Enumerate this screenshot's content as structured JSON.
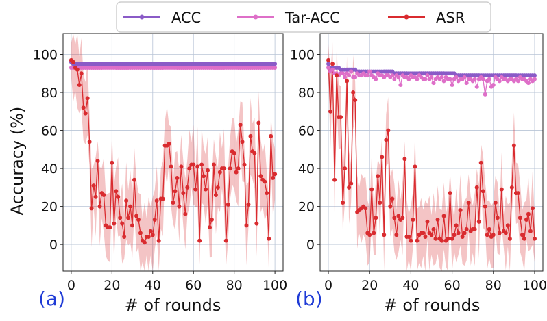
{
  "figure": {
    "legend": [
      {
        "label": "ACC",
        "color": "#8a5bc7"
      },
      {
        "label": "Tar-ACC",
        "color": "#de6fc8"
      },
      {
        "label": "ASR",
        "color": "#d92b2f"
      }
    ],
    "ylabel": "Accuracy (%)"
  },
  "chart_data": [
    {
      "type": "line",
      "panel_label": "(a)",
      "xlabel": "# of rounds",
      "ylabel": "Accuracy (%)",
      "xlim": [
        -4,
        104
      ],
      "ylim": [
        -14,
        111
      ],
      "xticks": [
        0,
        20,
        40,
        60,
        80,
        100
      ],
      "yticks": [
        0,
        20,
        40,
        60,
        80,
        100
      ],
      "grid": true,
      "x": [
        0,
        1,
        2,
        3,
        4,
        5,
        6,
        7,
        8,
        9,
        10,
        11,
        12,
        13,
        14,
        15,
        16,
        17,
        18,
        19,
        20,
        21,
        22,
        23,
        24,
        25,
        26,
        27,
        28,
        29,
        30,
        31,
        32,
        33,
        34,
        35,
        36,
        37,
        38,
        39,
        40,
        41,
        42,
        43,
        44,
        45,
        46,
        47,
        48,
        49,
        50,
        51,
        52,
        53,
        54,
        55,
        56,
        57,
        58,
        59,
        60,
        61,
        62,
        63,
        64,
        65,
        66,
        67,
        68,
        69,
        70,
        71,
        72,
        73,
        74,
        75,
        76,
        77,
        78,
        79,
        80,
        81,
        82,
        83,
        84,
        85,
        86,
        87,
        88,
        89,
        90,
        91,
        92,
        93,
        94,
        95,
        96,
        97,
        98,
        99,
        100
      ],
      "series": [
        {
          "name": "ACC",
          "color": "#8a5bc7",
          "values": [
            96,
            95,
            95,
            95,
            95,
            95,
            95,
            95,
            95,
            95,
            95,
            95,
            95,
            95,
            95,
            95,
            95,
            95,
            95,
            95,
            95,
            95,
            95,
            95,
            95,
            95,
            95,
            95,
            95,
            95,
            95,
            95,
            95,
            95,
            95,
            95,
            95,
            95,
            95,
            95,
            95,
            95,
            95,
            95,
            95,
            95,
            95,
            95,
            95,
            95,
            95,
            95,
            95,
            95,
            95,
            95,
            95,
            95,
            95,
            95,
            95,
            95,
            95,
            95,
            95,
            95,
            95,
            95,
            95,
            95,
            95,
            95,
            95,
            95,
            95,
            95,
            95,
            95,
            95,
            95,
            95,
            95,
            95,
            95,
            95,
            95,
            95,
            95,
            95,
            95,
            95,
            95,
            95,
            95,
            95,
            95,
            95,
            95,
            95,
            95,
            95
          ]
        },
        {
          "name": "Tar-ACC",
          "color": "#de6fc8",
          "values": [
            93,
            93,
            93,
            93,
            93,
            93,
            93,
            93,
            93,
            93,
            93,
            93,
            93,
            93,
            93,
            93,
            93,
            93,
            93,
            93,
            93,
            93,
            93,
            93,
            93,
            93,
            93,
            93,
            93,
            93,
            93,
            93,
            93,
            93,
            93,
            93,
            93,
            93,
            93,
            93,
            93,
            93,
            93,
            93,
            93,
            93,
            93,
            93,
            93,
            93,
            93,
            93,
            93,
            93,
            93,
            93,
            93,
            93,
            93,
            93,
            93,
            93,
            93,
            93,
            93,
            93,
            93,
            93,
            93,
            93,
            93,
            93,
            93,
            93,
            93,
            93,
            93,
            93,
            93,
            93,
            93,
            93,
            93,
            93,
            93,
            93,
            93,
            93,
            93,
            93,
            93,
            93,
            93,
            93,
            93,
            93,
            93,
            93,
            93,
            93,
            93
          ]
        },
        {
          "name": "ASR",
          "color": "#d92b2f",
          "band_width": 15,
          "values": [
            97,
            96,
            93,
            92,
            84,
            90,
            72,
            69,
            77,
            54,
            19,
            31,
            25,
            44,
            20,
            27,
            26,
            10,
            9,
            9,
            43,
            11,
            28,
            25,
            14,
            11,
            4,
            23,
            14,
            20,
            10,
            34,
            15,
            13,
            6,
            2,
            1,
            4,
            4,
            7,
            5,
            13,
            23,
            2,
            24,
            24,
            52,
            52,
            53,
            41,
            22,
            28,
            35,
            20,
            41,
            27,
            16,
            30,
            40,
            42,
            42,
            29,
            41,
            2,
            42,
            36,
            29,
            39,
            9,
            13,
            42,
            26,
            30,
            38,
            40,
            40,
            2,
            21,
            40,
            49,
            48,
            38,
            40,
            63,
            54,
            42,
            10,
            21,
            57,
            49,
            48,
            11,
            64,
            36,
            34,
            33,
            27,
            3,
            57,
            35,
            37
          ]
        }
      ]
    },
    {
      "type": "line",
      "panel_label": "(b)",
      "xlabel": "# of rounds",
      "ylabel": "",
      "xlim": [
        -4,
        104
      ],
      "ylim": [
        -14,
        111
      ],
      "xticks": [
        0,
        20,
        40,
        60,
        80,
        100
      ],
      "yticks": [
        0,
        20,
        40,
        60,
        80,
        100
      ],
      "grid": true,
      "x": [
        0,
        1,
        2,
        3,
        4,
        5,
        6,
        7,
        8,
        9,
        10,
        11,
        12,
        13,
        14,
        15,
        16,
        17,
        18,
        19,
        20,
        21,
        22,
        23,
        24,
        25,
        26,
        27,
        28,
        29,
        30,
        31,
        32,
        33,
        34,
        35,
        36,
        37,
        38,
        39,
        40,
        41,
        42,
        43,
        44,
        45,
        46,
        47,
        48,
        49,
        50,
        51,
        52,
        53,
        54,
        55,
        56,
        57,
        58,
        59,
        60,
        61,
        62,
        63,
        64,
        65,
        66,
        67,
        68,
        69,
        70,
        71,
        72,
        73,
        74,
        75,
        76,
        77,
        78,
        79,
        80,
        81,
        82,
        83,
        84,
        85,
        86,
        87,
        88,
        89,
        90,
        91,
        92,
        93,
        94,
        95,
        96,
        97,
        98,
        99,
        100
      ],
      "series": [
        {
          "name": "ACC",
          "color": "#8a5bc7",
          "values": [
            95,
            93,
            93,
            93,
            93,
            93,
            92,
            92,
            92,
            92,
            92,
            92,
            92,
            92,
            91,
            91,
            91,
            91,
            91,
            91,
            91,
            91,
            91,
            91,
            91,
            91,
            91,
            91,
            91,
            91,
            91,
            91,
            90,
            90,
            90,
            90,
            90,
            90,
            90,
            90,
            90,
            90,
            90,
            90,
            90,
            90,
            90,
            90,
            90,
            90,
            90,
            90,
            90,
            90,
            90,
            90,
            90,
            90,
            90,
            90,
            90,
            90,
            89,
            89,
            89,
            89,
            89,
            89,
            89,
            89,
            89,
            89,
            89,
            89,
            89,
            89,
            89,
            89,
            89,
            89,
            89,
            89,
            89,
            89,
            89,
            89,
            89,
            89,
            89,
            89,
            89,
            89,
            89,
            89,
            89,
            89,
            89,
            89,
            89,
            89,
            89
          ]
        },
        {
          "name": "Tar-ACC",
          "color": "#de6fc8",
          "values": [
            93,
            91,
            92,
            90,
            90,
            89,
            90,
            90,
            88,
            90,
            89,
            91,
            88,
            88,
            90,
            89,
            89,
            90,
            89,
            89,
            91,
            89,
            88,
            87,
            90,
            89,
            89,
            88,
            89,
            89,
            88,
            89,
            87,
            89,
            88,
            84,
            89,
            88,
            88,
            87,
            89,
            88,
            88,
            87,
            89,
            88,
            87,
            87,
            89,
            87,
            88,
            85,
            87,
            88,
            87,
            88,
            86,
            88,
            87,
            87,
            84,
            87,
            88,
            86,
            87,
            87,
            88,
            85,
            87,
            87,
            86,
            87,
            83,
            87,
            88,
            87,
            79,
            86,
            87,
            83,
            84,
            88,
            87,
            86,
            88,
            87,
            87,
            86,
            87,
            87,
            86,
            87,
            86,
            88,
            87,
            87,
            86,
            85,
            87,
            86,
            87
          ]
        },
        {
          "name": "ASR",
          "color": "#d92b2f",
          "band_width": 14,
          "values": [
            97,
            70,
            95,
            34,
            89,
            67,
            67,
            22,
            40,
            86,
            30,
            32,
            80,
            76,
            17,
            18,
            19,
            20,
            19,
            6,
            5,
            29,
            6,
            14,
            36,
            22,
            46,
            5,
            55,
            60,
            20,
            24,
            14,
            5,
            15,
            13,
            14,
            45,
            4,
            4,
            2,
            13,
            41,
            2,
            5,
            6,
            6,
            4,
            12,
            6,
            5,
            8,
            3,
            13,
            3,
            2,
            15,
            2,
            3,
            27,
            3,
            5,
            10,
            6,
            18,
            4,
            6,
            8,
            22,
            7,
            8,
            8,
            30,
            12,
            43,
            28,
            20,
            5,
            8,
            4,
            5,
            22,
            14,
            6,
            29,
            7,
            6,
            10,
            3,
            30,
            52,
            27,
            27,
            14,
            5,
            3,
            13,
            16,
            7,
            19,
            3
          ]
        }
      ]
    }
  ]
}
